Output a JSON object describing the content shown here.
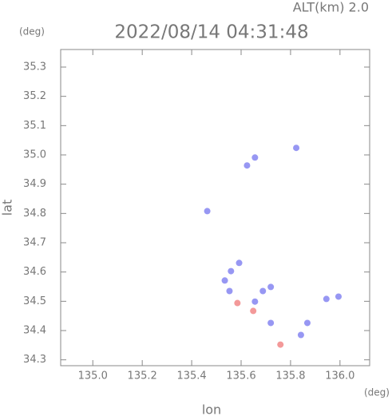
{
  "chart_data": {
    "type": "scatter",
    "subtitle": "ALT(km) 2.0",
    "title": "2022/08/14 04:31:48",
    "y_unit": "(deg)",
    "x_unit": "(deg)",
    "x_label": "lon",
    "y_label": "lat",
    "xlim": [
      134.87,
      136.12
    ],
    "ylim": [
      34.28,
      35.36
    ],
    "xticks": [
      {
        "value": 135,
        "label": "135.0"
      },
      135.2,
      135.4,
      135.6,
      135.8,
      {
        "value": 136,
        "label": "136.0"
      }
    ],
    "yticks": [
      34.3,
      34.4,
      34.5,
      34.6,
      34.7,
      34.8,
      34.9,
      {
        "value": 35,
        "label": "35.0"
      },
      35.1,
      35.2,
      35.3
    ],
    "x": [
      135.624,
      135.656,
      135.823,
      135.463,
      135.534,
      135.559,
      135.592,
      135.553,
      135.585,
      135.656,
      135.649,
      135.688,
      135.72,
      135.759,
      135.842,
      135.868,
      135.945,
      135.994,
      135.72
    ],
    "values": [
      34.964,
      34.991,
      35.024,
      34.808,
      34.571,
      34.603,
      34.631,
      34.535,
      34.494,
      34.499,
      34.467,
      34.535,
      34.426,
      34.352,
      34.385,
      34.426,
      34.508,
      34.516,
      34.549
    ],
    "colors": [
      "#7d7df0",
      "#7d7df0",
      "#7d7df0",
      "#7d7df0",
      "#7d7df0",
      "#7d7df0",
      "#7d7df0",
      "#7d7df0",
      "#f08080",
      "#7d7df0",
      "#f08080",
      "#7d7df0",
      "#7d7df0",
      "#f08080",
      "#7d7df0",
      "#7d7df0",
      "#7d7df0",
      "#7d7df0",
      "#7d7df0"
    ]
  }
}
